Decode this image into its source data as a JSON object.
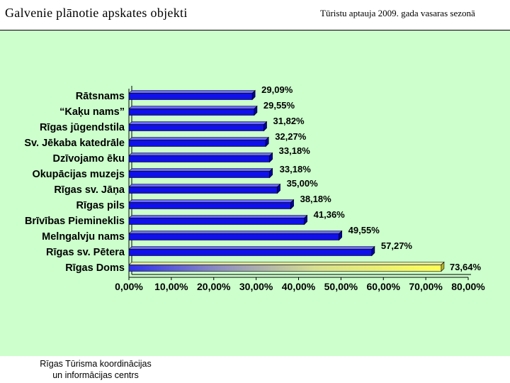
{
  "header": {
    "title": "Galvenie plānotie apskates objekti",
    "subtitle": "Tūristu aptauja 2009. gada vasaras sezonā"
  },
  "footer": {
    "line1": "Rīgas Tūrisma koordinācijas",
    "line2": "un informācijas centrs"
  },
  "colors": {
    "background": "#ccffcc",
    "bar": "#1010e8",
    "highlight_bar": "#ffff66"
  },
  "chart_data": {
    "type": "bar",
    "orientation": "horizontal",
    "categories": [
      "Rātsnams",
      "“Kaķu nams”",
      "Rīgas jūgendstila",
      "Sv. Jēkaba katedrāle",
      "Dzīvojamo ēku",
      "Okupācijas muzejs",
      "Rīgas sv. Jāņa",
      "Rīgas pils",
      "Brīvības Piemineklis",
      "Melngalvju nams",
      "Rīgas sv. Pētera",
      "Rīgas Doms"
    ],
    "values": [
      29.09,
      29.55,
      31.82,
      32.27,
      33.18,
      33.18,
      35.0,
      38.18,
      41.36,
      49.55,
      57.27,
      73.64
    ],
    "value_labels": [
      "29,09%",
      "29,55%",
      "31,82%",
      "32,27%",
      "33,18%",
      "33,18%",
      "35,00%",
      "38,18%",
      "41,36%",
      "49,55%",
      "57,27%",
      "73,64%"
    ],
    "xticks": [
      "0,00%",
      "10,00%",
      "20,00%",
      "30,00%",
      "40,00%",
      "50,00%",
      "60,00%",
      "70,00%",
      "80,00%"
    ],
    "xlim": [
      0,
      80
    ],
    "title": "",
    "xlabel": "",
    "ylabel": "",
    "grid": false,
    "legend": "none"
  }
}
